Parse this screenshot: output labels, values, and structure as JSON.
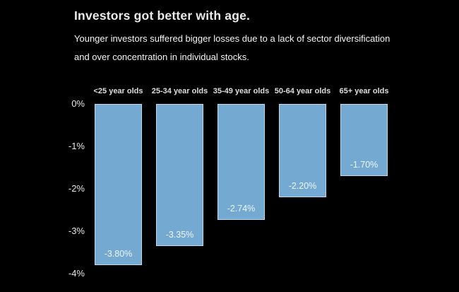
{
  "header": {
    "title": "Investors got better with age.",
    "subtitle": "Younger investors suffered bigger losses due to a lack of sector diversification and over concentration in individual stocks."
  },
  "colors": {
    "background": "#000000",
    "bar_fill": "#74aad2",
    "bar_border": "rgba(255,255,255,0.55)",
    "text": "#eaeaea"
  },
  "chart_data": {
    "type": "bar",
    "title": "Investors got better with age.",
    "subtitle": "Younger investors suffered bigger losses due to a lack of sector diversification and over concentration in individual stocks.",
    "categories": [
      "<25 year olds",
      "25-34 year olds",
      "35-49 year olds",
      "50-64 year olds",
      "65+ year olds"
    ],
    "values": [
      -3.8,
      -3.35,
      -2.74,
      -2.2,
      -1.7
    ],
    "value_labels": [
      "-3.80%",
      "-3.35%",
      "-2.74%",
      "-2.20%",
      "-1.70%"
    ],
    "xlabel": "",
    "ylabel": "",
    "ylim": [
      0,
      -4
    ],
    "grid": false,
    "legend": "none",
    "y_ticks": [
      {
        "label": "0%",
        "value": 0
      },
      {
        "label": "-1%",
        "value": -1
      },
      {
        "label": "-2%",
        "value": -2
      },
      {
        "label": "-3%",
        "value": -3
      },
      {
        "label": "-4%",
        "value": -4
      }
    ]
  }
}
